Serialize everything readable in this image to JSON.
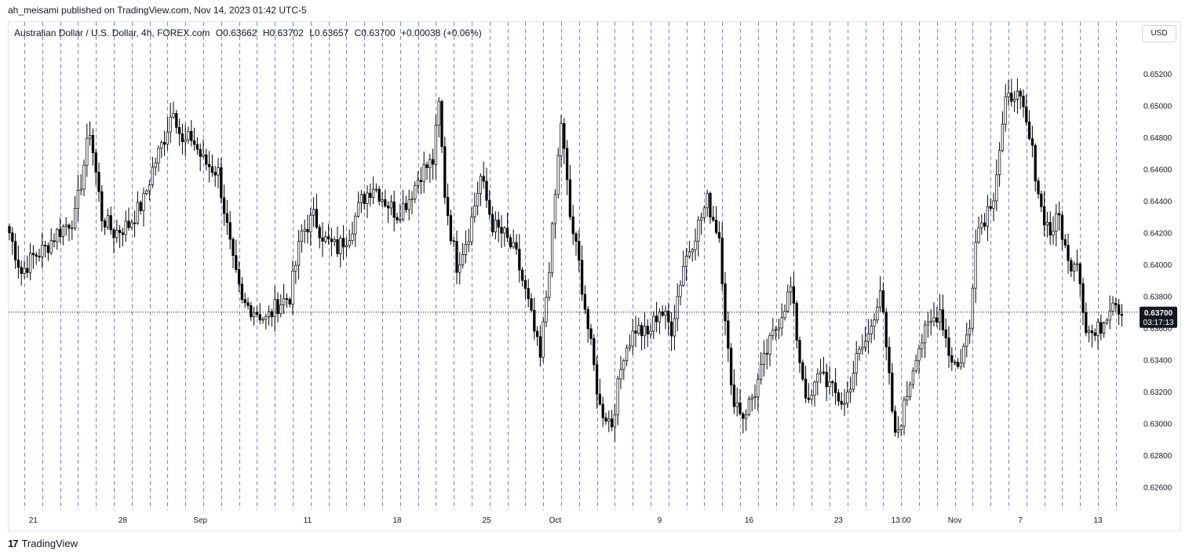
{
  "publish_line": "ah_meisami published on TradingView.com, Nov 14, 2023 01:42 UTC-5",
  "legend": {
    "symbol": "Australian Dollar / U.S. Dollar, 4h, FOREX.com",
    "open": "O0.63662",
    "high": "H0.63702",
    "low": "L0.63657",
    "close": "C0.63700",
    "change": "+0.00038 (+0.06%)"
  },
  "currency_button": "USD",
  "price_badge": {
    "price": "0.63700",
    "countdown": "03:17:13"
  },
  "footer_brand": "TradingView",
  "footer_logo": "17",
  "chart_data": {
    "type": "candlestick",
    "symbol": "AUDUSD",
    "timeframe": "4h",
    "ylim": [
      0.6245,
      0.653
    ],
    "y_ticks": [
      0.626,
      0.628,
      0.63,
      0.632,
      0.634,
      0.636,
      0.638,
      0.64,
      0.642,
      0.644,
      0.646,
      0.648,
      0.65,
      0.652
    ],
    "y_tick_labels": [
      "0.62600",
      "0.62800",
      "0.63000",
      "0.63200",
      "0.63400",
      "0.63600",
      "0.63800",
      "0.64000",
      "0.64200",
      "0.64400",
      "0.64600",
      "0.64800",
      "0.65000",
      "0.65200"
    ],
    "x_ticks": [
      {
        "label": "21",
        "bar": 8
      },
      {
        "label": "28",
        "bar": 38
      },
      {
        "label": "Sep",
        "bar": 64
      },
      {
        "label": "11",
        "bar": 100
      },
      {
        "label": "18",
        "bar": 130
      },
      {
        "label": "25",
        "bar": 160
      },
      {
        "label": "Oct",
        "bar": 183
      },
      {
        "label": "9",
        "bar": 218
      },
      {
        "label": "16",
        "bar": 248
      },
      {
        "label": "23",
        "bar": 278
      },
      {
        "label": "13:00",
        "bar": 299
      },
      {
        "label": "Nov",
        "bar": 317
      },
      {
        "label": "7",
        "bar": 339
      },
      {
        "label": "13",
        "bar": 365
      }
    ],
    "last_price": 0.637,
    "grid": "vertical dashed lines every 6 bars",
    "price_line": "dotted horizontal at last price",
    "anchors": [
      [
        0,
        0.642
      ],
      [
        4,
        0.6395
      ],
      [
        8,
        0.6405
      ],
      [
        12,
        0.641
      ],
      [
        16,
        0.642
      ],
      [
        22,
        0.643
      ],
      [
        27,
        0.6485
      ],
      [
        31,
        0.643
      ],
      [
        35,
        0.642
      ],
      [
        40,
        0.6425
      ],
      [
        45,
        0.644
      ],
      [
        48,
        0.646
      ],
      [
        52,
        0.648
      ],
      [
        55,
        0.65
      ],
      [
        58,
        0.6475
      ],
      [
        61,
        0.648
      ],
      [
        65,
        0.6465
      ],
      [
        70,
        0.6458
      ],
      [
        75,
        0.64
      ],
      [
        78,
        0.6375
      ],
      [
        82,
        0.6372
      ],
      [
        86,
        0.6365
      ],
      [
        90,
        0.6375
      ],
      [
        94,
        0.638
      ],
      [
        98,
        0.642
      ],
      [
        102,
        0.643
      ],
      [
        106,
        0.6415
      ],
      [
        110,
        0.641
      ],
      [
        114,
        0.642
      ],
      [
        118,
        0.644
      ],
      [
        122,
        0.645
      ],
      [
        126,
        0.644
      ],
      [
        130,
        0.6432
      ],
      [
        134,
        0.6442
      ],
      [
        138,
        0.6458
      ],
      [
        142,
        0.6465
      ],
      [
        144,
        0.65
      ],
      [
        146,
        0.6445
      ],
      [
        148,
        0.642
      ],
      [
        150,
        0.64
      ],
      [
        154,
        0.642
      ],
      [
        158,
        0.6455
      ],
      [
        162,
        0.6425
      ],
      [
        166,
        0.6418
      ],
      [
        170,
        0.6405
      ],
      [
        174,
        0.6375
      ],
      [
        178,
        0.634
      ],
      [
        182,
        0.642
      ],
      [
        185,
        0.649
      ],
      [
        188,
        0.643
      ],
      [
        191,
        0.64
      ],
      [
        194,
        0.636
      ],
      [
        198,
        0.631
      ],
      [
        202,
        0.63
      ],
      [
        206,
        0.6345
      ],
      [
        210,
        0.636
      ],
      [
        214,
        0.6355
      ],
      [
        218,
        0.6372
      ],
      [
        222,
        0.636
      ],
      [
        226,
        0.64
      ],
      [
        230,
        0.642
      ],
      [
        234,
        0.644
      ],
      [
        238,
        0.6418
      ],
      [
        242,
        0.632
      ],
      [
        246,
        0.6305
      ],
      [
        250,
        0.632
      ],
      [
        254,
        0.6345
      ],
      [
        258,
        0.6365
      ],
      [
        262,
        0.6385
      ],
      [
        265,
        0.634
      ],
      [
        268,
        0.631
      ],
      [
        272,
        0.6335
      ],
      [
        276,
        0.632
      ],
      [
        280,
        0.6312
      ],
      [
        284,
        0.634
      ],
      [
        288,
        0.6355
      ],
      [
        292,
        0.6385
      ],
      [
        294,
        0.6345
      ],
      [
        297,
        0.629
      ],
      [
        300,
        0.631
      ],
      [
        304,
        0.6345
      ],
      [
        308,
        0.636
      ],
      [
        312,
        0.6372
      ],
      [
        315,
        0.6345
      ],
      [
        318,
        0.6335
      ],
      [
        322,
        0.636
      ],
      [
        324,
        0.642
      ],
      [
        327,
        0.643
      ],
      [
        330,
        0.6445
      ],
      [
        334,
        0.65
      ],
      [
        337,
        0.651
      ],
      [
        340,
        0.6495
      ],
      [
        343,
        0.647
      ],
      [
        346,
        0.6435
      ],
      [
        349,
        0.642
      ],
      [
        352,
        0.643
      ],
      [
        355,
        0.64
      ],
      [
        358,
        0.6405
      ],
      [
        361,
        0.636
      ],
      [
        364,
        0.6355
      ],
      [
        367,
        0.6365
      ],
      [
        370,
        0.638
      ],
      [
        373,
        0.637
      ]
    ]
  }
}
